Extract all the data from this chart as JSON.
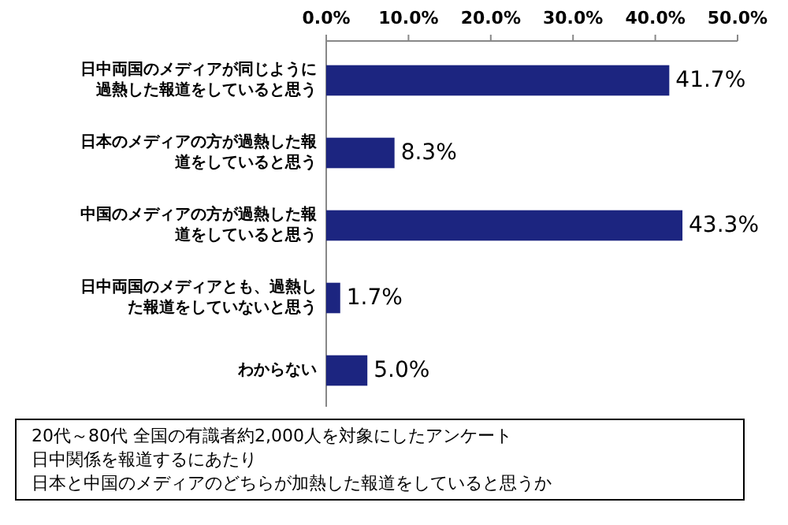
{
  "chart_data": {
    "type": "bar",
    "orientation": "horizontal",
    "categories": [
      "日中両国のメディアが同じように過熱した報道をしていると思う",
      "日本のメディアの方が過熱した報道をしていると思う",
      "中国のメディアの方が過熱した報道をしていると思う",
      "日中両国のメディアとも、過熱した報道をしていないと思う",
      "わからない"
    ],
    "values": [
      41.7,
      8.3,
      43.3,
      1.7,
      5.0
    ],
    "value_labels": [
      "41.7%",
      "8.3%",
      "43.3%",
      "1.7%",
      "5.0%"
    ],
    "color": "#1c2580",
    "xlim": [
      0,
      50
    ],
    "xticks": [
      {
        "value": 0,
        "label": "0.0%"
      },
      {
        "value": 10,
        "label": "10.0%"
      },
      {
        "value": 20,
        "label": "20.0%"
      },
      {
        "value": 30,
        "label": "30.0%"
      },
      {
        "value": 40,
        "label": "40.0%"
      },
      {
        "value": 50,
        "label": "50.0%"
      }
    ],
    "annotations": [
      "20代～80代 全国の有識者約2,000人を対象にしたアンケート",
      "日中関係を報道するにあたり",
      "日本と中国のメディアのどちらが加熱した報道をしていると思うか"
    ]
  }
}
